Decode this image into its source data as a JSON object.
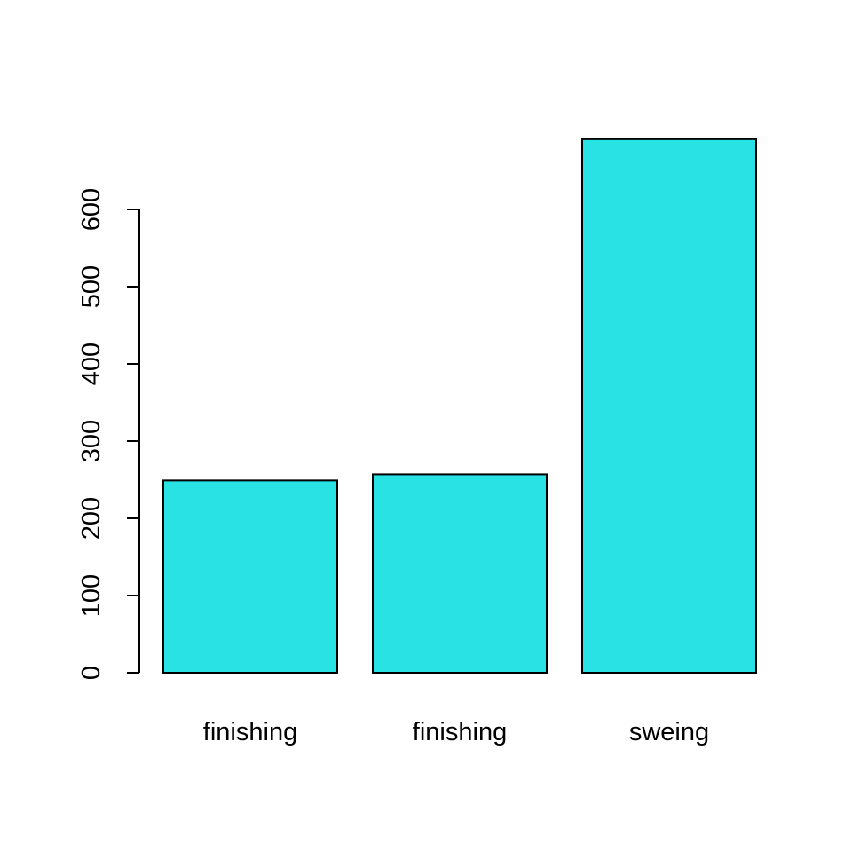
{
  "chart_data": {
    "type": "bar",
    "categories": [
      "finishing",
      "finishing",
      "sweing"
    ],
    "values": [
      249,
      257,
      691
    ],
    "title": "",
    "xlabel": "",
    "ylabel": "",
    "ylim": [
      0,
      691
    ],
    "yticks": [
      0,
      100,
      200,
      300,
      400,
      500,
      600
    ],
    "ytick_labels": [
      "0",
      "100",
      "200",
      "300",
      "400",
      "500",
      "600"
    ],
    "bar_color": "#29E2E4",
    "bar_border_color": "#000000",
    "grid": false,
    "legend": "none"
  }
}
